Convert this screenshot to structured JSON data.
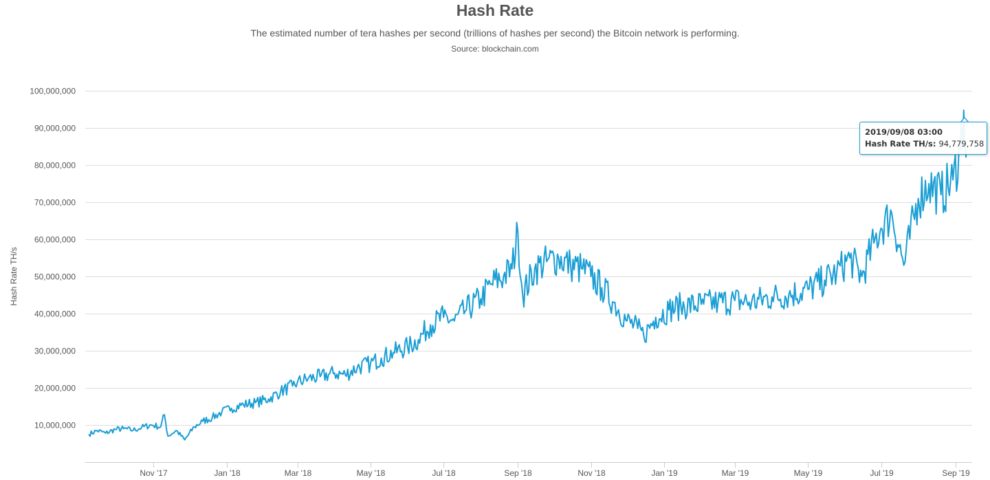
{
  "chart_data": {
    "type": "line",
    "title": "Hash Rate",
    "subtitle": "The estimated number of tera hashes per second (trillions of hashes per second) the Bitcoin network is performing.",
    "source": "Source: blockchain.com",
    "ylabel": "Hash Rate TH/s",
    "xlabel": "",
    "ylim": [
      0,
      100000000
    ],
    "xlim": [
      "2017-09-05",
      "2019-09-15"
    ],
    "grid": true,
    "legend": "none",
    "line_color": "#1a9ed4",
    "y_ticks": [
      10000000,
      20000000,
      30000000,
      40000000,
      50000000,
      60000000,
      70000000,
      80000000,
      90000000,
      100000000
    ],
    "y_tick_labels": [
      "10,000,000",
      "20,000,000",
      "30,000,000",
      "40,000,000",
      "50,000,000",
      "60,000,000",
      "70,000,000",
      "80,000,000",
      "90,000,000",
      "100,000,000"
    ],
    "x_ticks": [
      {
        "date": "2017-11-01",
        "label": "Nov '17"
      },
      {
        "date": "2018-01-01",
        "label": "Jan '18"
      },
      {
        "date": "2018-03-01",
        "label": "Mar '18"
      },
      {
        "date": "2018-05-01",
        "label": "May '18"
      },
      {
        "date": "2018-07-01",
        "label": "Jul '18"
      },
      {
        "date": "2018-09-01",
        "label": "Sep '18"
      },
      {
        "date": "2018-11-01",
        "label": "Nov '18"
      },
      {
        "date": "2019-01-01",
        "label": "Jan '19"
      },
      {
        "date": "2019-03-01",
        "label": "Mar '19"
      },
      {
        "date": "2019-05-01",
        "label": "May '19"
      },
      {
        "date": "2019-07-01",
        "label": "Jul '19"
      },
      {
        "date": "2019-09-01",
        "label": "Sep '19"
      }
    ],
    "series": [
      {
        "points": [
          [
            "2017-09-08",
            7500000
          ],
          [
            "2017-09-15",
            8500000
          ],
          [
            "2017-09-22",
            7800000
          ],
          [
            "2017-09-30",
            8800000
          ],
          [
            "2017-10-07",
            9000000
          ],
          [
            "2017-10-15",
            8600000
          ],
          [
            "2017-10-22",
            9300000
          ],
          [
            "2017-10-30",
            10000000
          ],
          [
            "2017-11-07",
            9500000
          ],
          [
            "2017-11-10",
            12800000
          ],
          [
            "2017-11-13",
            7000000
          ],
          [
            "2017-11-20",
            8500000
          ],
          [
            "2017-11-27",
            6000000
          ],
          [
            "2017-12-05",
            9500000
          ],
          [
            "2017-12-12",
            11000000
          ],
          [
            "2017-12-20",
            12000000
          ],
          [
            "2017-12-28",
            13500000
          ],
          [
            "2018-01-05",
            14500000
          ],
          [
            "2018-01-15",
            15500000
          ],
          [
            "2018-01-25",
            16000000
          ],
          [
            "2018-02-05",
            17000000
          ],
          [
            "2018-02-15",
            19000000
          ],
          [
            "2018-02-25",
            20500000
          ],
          [
            "2018-03-01",
            21500000
          ],
          [
            "2018-03-10",
            22500000
          ],
          [
            "2018-03-20",
            23000000
          ],
          [
            "2018-04-01",
            24000000
          ],
          [
            "2018-04-10",
            23500000
          ],
          [
            "2018-04-20",
            25500000
          ],
          [
            "2018-05-01",
            26500000
          ],
          [
            "2018-05-10",
            28000000
          ],
          [
            "2018-05-20",
            29500000
          ],
          [
            "2018-06-01",
            31000000
          ],
          [
            "2018-06-10",
            33000000
          ],
          [
            "2018-06-20",
            37000000
          ],
          [
            "2018-07-01",
            39000000
          ],
          [
            "2018-07-10",
            38000000
          ],
          [
            "2018-07-20",
            41000000
          ],
          [
            "2018-08-01",
            44000000
          ],
          [
            "2018-08-10",
            48000000
          ],
          [
            "2018-08-20",
            50000000
          ],
          [
            "2018-08-27",
            52000000
          ],
          [
            "2018-09-01",
            62000000
          ],
          [
            "2018-09-05",
            45000000
          ],
          [
            "2018-09-15",
            52000000
          ],
          [
            "2018-09-25",
            54000000
          ],
          [
            "2018-10-05",
            55000000
          ],
          [
            "2018-10-15",
            53000000
          ],
          [
            "2018-10-25",
            52000000
          ],
          [
            "2018-11-01",
            50000000
          ],
          [
            "2018-11-10",
            47000000
          ],
          [
            "2018-11-20",
            43000000
          ],
          [
            "2018-12-01",
            38000000
          ],
          [
            "2018-12-10",
            36000000
          ],
          [
            "2018-12-15",
            34000000
          ],
          [
            "2018-12-25",
            39000000
          ],
          [
            "2019-01-05",
            41000000
          ],
          [
            "2019-01-15",
            42000000
          ],
          [
            "2019-02-01",
            42500000
          ],
          [
            "2019-02-15",
            43000000
          ],
          [
            "2019-03-01",
            43500000
          ],
          [
            "2019-03-15",
            43000000
          ],
          [
            "2019-04-01",
            44500000
          ],
          [
            "2019-04-15",
            45000000
          ],
          [
            "2019-05-01",
            46500000
          ],
          [
            "2019-05-15",
            49000000
          ],
          [
            "2019-05-25",
            51000000
          ],
          [
            "2019-06-05",
            55000000
          ],
          [
            "2019-06-15",
            50000000
          ],
          [
            "2019-06-25",
            59000000
          ],
          [
            "2019-07-01",
            63000000
          ],
          [
            "2019-07-10",
            67000000
          ],
          [
            "2019-07-20",
            53000000
          ],
          [
            "2019-08-01",
            71000000
          ],
          [
            "2019-08-10",
            75000000
          ],
          [
            "2019-08-20",
            72000000
          ],
          [
            "2019-08-30",
            76000000
          ],
          [
            "2019-09-05",
            84000000
          ],
          [
            "2019-09-08",
            94779758
          ],
          [
            "2019-09-10",
            82000000
          ]
        ]
      }
    ],
    "tooltip": {
      "date_text": "2019/09/08 03:00",
      "series_label": "Hash Rate TH/s",
      "value_text": "94,779,758"
    }
  }
}
